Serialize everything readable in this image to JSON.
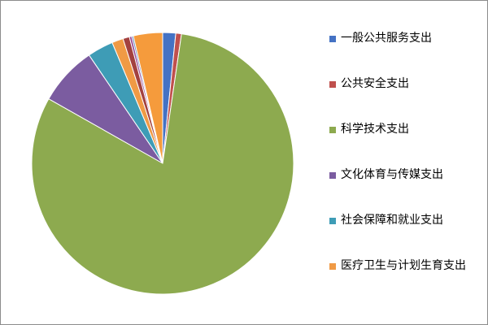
{
  "chart_data": {
    "type": "pie",
    "title": "",
    "legend_position": "right",
    "slices": [
      {
        "label": "一般公共服务支出",
        "value": 1.6,
        "color": "#4472C4"
      },
      {
        "label": "公共安全支出",
        "value": 0.7,
        "color": "#C0504D"
      },
      {
        "label": "科学技术支出",
        "value": 80.9,
        "color": "#8DAA4F"
      },
      {
        "label": "文化体育与传媒支出",
        "value": 7.3,
        "color": "#7B5CA0"
      },
      {
        "label": "社会保障和就业支出",
        "value": 3.2,
        "color": "#3E9CB6"
      },
      {
        "label": "医疗卫生与计划生育支出",
        "value": 1.4,
        "color": "#F09A45"
      },
      {
        "label": "",
        "value": 0.8,
        "color": "#A3413F"
      },
      {
        "label": "",
        "value": 0.3,
        "color": "#9A4C98"
      },
      {
        "label": "",
        "value": 0.2,
        "color": "#5B7FB6"
      },
      {
        "label": "",
        "value": 3.6,
        "color": "#F59B3C"
      }
    ]
  }
}
